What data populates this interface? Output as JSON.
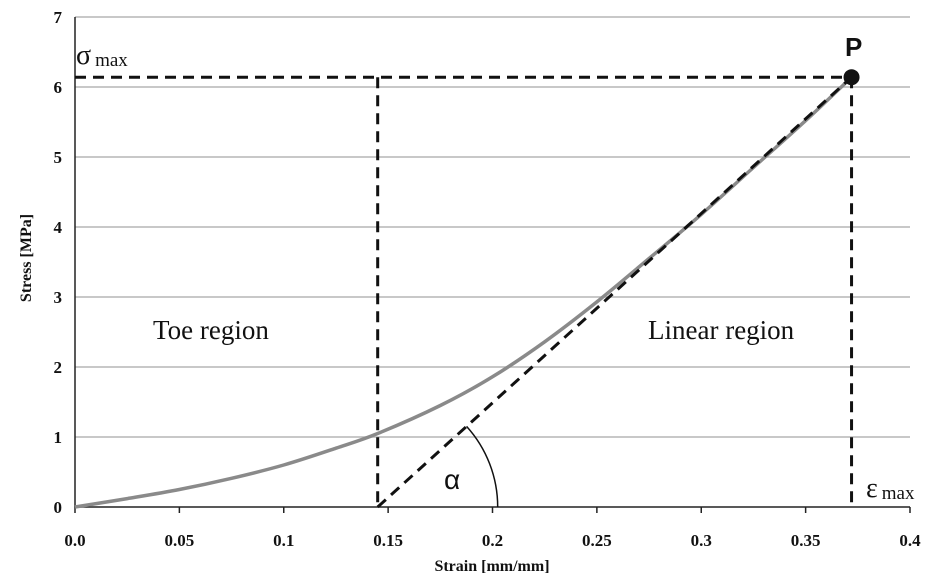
{
  "chart_data": {
    "type": "line",
    "xlabel": "Strain [mm/mm]",
    "ylabel": "Stress [MPa]",
    "xlim": [
      0,
      0.4
    ],
    "ylim": [
      0,
      7
    ],
    "x_ticks": [
      "0.0",
      "0.05",
      "0.1",
      "0.15",
      "0.2",
      "0.25",
      "0.3",
      "0.35",
      "0.4"
    ],
    "y_ticks": [
      "0",
      "1",
      "2",
      "3",
      "4",
      "5",
      "6",
      "7"
    ],
    "grid": "horizontal",
    "series": [
      {
        "color": "#8a8a8a",
        "x": [
          0.0,
          0.025,
          0.05,
          0.075,
          0.1,
          0.125,
          0.145,
          0.175,
          0.2,
          0.225,
          0.25,
          0.275,
          0.3,
          0.325,
          0.35,
          0.372
        ],
        "y": [
          0.0,
          0.12,
          0.25,
          0.41,
          0.6,
          0.84,
          1.05,
          1.45,
          1.86,
          2.36,
          2.93,
          3.55,
          4.18,
          4.85,
          5.52,
          6.14
        ]
      }
    ],
    "tangent_line": {
      "x": [
        0.145,
        0.372
      ],
      "y": [
        0.0,
        6.14
      ]
    },
    "reference_lines": {
      "sigma_max": 6.14,
      "epsilon_max": 0.372,
      "toe_end_strain": 0.145
    },
    "point": {
      "label": "P",
      "x": 0.372,
      "y": 6.14
    },
    "annotations": {
      "toe_region": "Toe region",
      "linear_region": "Linear region",
      "angle": "α",
      "sigma_symbol": "σ",
      "sigma_sub": "max",
      "epsilon_symbol": "ε",
      "epsilon_sub": "max"
    }
  }
}
